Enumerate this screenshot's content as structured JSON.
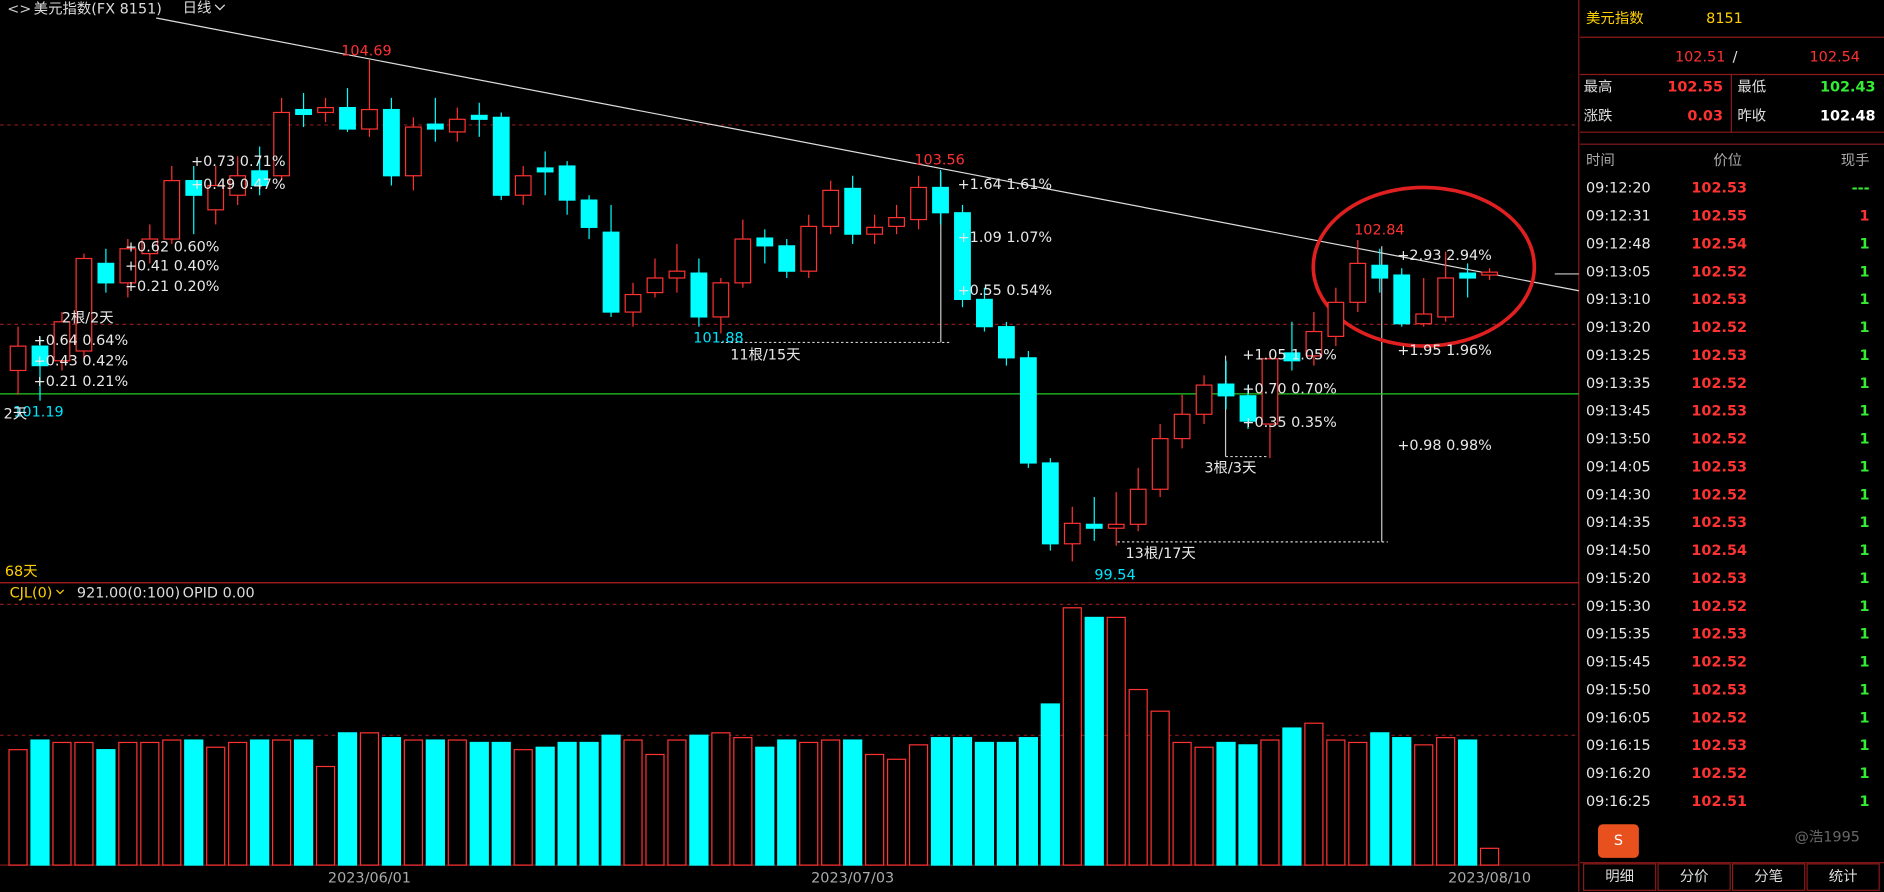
{
  "header": {
    "title": "美元指数(FX 8151)",
    "period": "日线"
  },
  "chart_data": {
    "type": "candlestick",
    "categories": [
      null,
      null,
      null,
      null,
      null,
      null,
      null,
      null,
      null,
      null,
      null,
      null,
      null,
      null,
      null,
      null,
      "2023/06/01",
      null,
      null,
      null,
      null,
      null,
      null,
      null,
      null,
      null,
      null,
      null,
      null,
      null,
      null,
      null,
      null,
      null,
      null,
      null,
      null,
      null,
      "2023/07/03",
      null,
      null,
      null,
      null,
      null,
      null,
      null,
      null,
      null,
      null,
      null,
      null,
      null,
      null,
      null,
      null,
      null,
      null,
      null,
      null,
      null,
      null,
      null,
      null,
      null,
      null,
      null,
      null,
      "2023/08/10"
    ],
    "open": [
      101.5,
      101.75,
      101.6,
      101.7,
      102.6,
      102.4,
      102.7,
      102.85,
      103.45,
      103.15,
      103.3,
      103.55,
      103.5,
      104.18,
      104.15,
      104.2,
      103.98,
      104.18,
      103.5,
      104.03,
      103.95,
      104.12,
      104.1,
      103.3,
      103.58,
      103.6,
      103.25,
      102.92,
      102.1,
      102.3,
      102.45,
      102.5,
      102.05,
      102.4,
      102.86,
      102.78,
      102.52,
      102.98,
      103.37,
      102.9,
      102.98,
      103.05,
      103.38,
      103.12,
      102.23,
      101.95,
      101.63,
      100.55,
      99.72,
      99.92,
      99.88,
      99.92,
      100.28,
      100.8,
      101.05,
      101.36,
      101.24,
      100.95,
      101.68,
      101.65,
      101.85,
      102.2,
      102.58,
      102.48,
      101.98,
      102.05,
      102.5,
      102.48
    ],
    "close": [
      101.75,
      101.55,
      102.0,
      102.65,
      102.4,
      102.75,
      102.85,
      103.45,
      103.3,
      103.4,
      103.5,
      103.4,
      104.15,
      104.13,
      104.2,
      103.98,
      104.18,
      103.5,
      104.0,
      103.98,
      104.08,
      104.08,
      103.3,
      103.5,
      103.54,
      103.25,
      102.97,
      102.1,
      102.28,
      102.45,
      102.52,
      102.05,
      102.4,
      102.85,
      102.78,
      102.52,
      102.98,
      103.35,
      102.9,
      102.97,
      103.07,
      103.38,
      103.12,
      102.23,
      101.95,
      101.63,
      100.55,
      99.72,
      99.93,
      99.88,
      99.92,
      100.28,
      100.8,
      101.05,
      101.35,
      101.24,
      100.98,
      101.62,
      101.6,
      101.9,
      102.2,
      102.6,
      102.45,
      101.98,
      102.08,
      102.45,
      102.45,
      102.51
    ],
    "high": [
      101.95,
      101.85,
      102.1,
      102.7,
      102.75,
      102.85,
      103.0,
      103.6,
      103.6,
      103.6,
      103.7,
      103.8,
      104.3,
      104.35,
      104.3,
      104.4,
      104.69,
      104.3,
      104.1,
      104.3,
      104.2,
      104.25,
      104.15,
      103.6,
      103.75,
      103.65,
      103.3,
      103.2,
      102.4,
      102.65,
      102.8,
      102.65,
      102.45,
      103.05,
      102.95,
      102.85,
      103.1,
      103.45,
      103.5,
      103.1,
      103.2,
      103.5,
      103.56,
      103.2,
      102.35,
      102.0,
      101.7,
      100.6,
      100.1,
      100.2,
      100.25,
      100.5,
      100.95,
      101.25,
      101.45,
      101.6,
      101.35,
      101.7,
      102.0,
      102.1,
      102.35,
      102.84,
      102.75,
      102.55,
      102.45,
      102.72,
      102.6,
      102.55
    ],
    "low": [
      101.25,
      101.19,
      101.5,
      101.6,
      102.3,
      102.25,
      102.6,
      102.8,
      102.9,
      103.0,
      103.2,
      103.3,
      103.45,
      104.0,
      104.05,
      103.95,
      103.9,
      103.4,
      103.35,
      103.85,
      103.85,
      103.9,
      103.25,
      103.2,
      103.3,
      103.1,
      102.85,
      102.05,
      101.95,
      102.25,
      102.3,
      101.95,
      101.88,
      102.35,
      102.6,
      102.45,
      102.45,
      102.9,
      102.8,
      102.8,
      102.9,
      102.95,
      103.0,
      102.15,
      101.9,
      101.55,
      100.5,
      99.65,
      99.54,
      99.75,
      99.7,
      99.85,
      100.2,
      100.7,
      100.95,
      101.1,
      100.9,
      100.6,
      101.5,
      101.55,
      101.75,
      102.1,
      102.3,
      101.95,
      101.95,
      102.0,
      102.25,
      102.43
    ],
    "ylim": [
      99.32,
      105.12
    ],
    "colors": {
      "up": "#ff3232",
      "down": "#00ffff"
    },
    "reference_line": 101.26,
    "count_label": "68天",
    "price_labels": [
      104.69,
      103.56,
      102.84,
      101.19,
      101.88,
      99.54
    ],
    "annotations": [
      "11根/15天",
      "13根/17天",
      "3根/3天",
      "2根/2天",
      "2天",
      "+1.64  1.61%",
      "+1.09  1.07%",
      "+0.55  0.54%",
      "+2.93  2.94%",
      "+1.95  1.96%",
      "+0.98  0.98%",
      "+1.05  1.05%",
      "+0.70  0.70%",
      "+0.35  0.35%",
      "+0.64  0.64%",
      "+0.43  0.42%",
      "+0.21  0.21%",
      "+0.62  0.60%",
      "+0.41  0.40%",
      "+0.21  0.20%",
      "+0.73  0.71%",
      "+0.49  0.47%"
    ],
    "volume": {
      "indicator": "CJL(0)",
      "params": "921.00(0:100)",
      "opid": "OPID 0.00",
      "ylim": [
        0,
        15500
      ],
      "values": [
        6336,
        6864,
        6732,
        6732,
        6336,
        6732,
        6732,
        6864,
        6864,
        6468,
        6732,
        6864,
        6864,
        6864,
        5412,
        7260,
        7260,
        6996,
        6864,
        6864,
        6864,
        6732,
        6732,
        6336,
        6468,
        6732,
        6732,
        7128,
        6864,
        6072,
        6864,
        7128,
        7260,
        6996,
        6468,
        6864,
        6732,
        6864,
        6864,
        6072,
        5808,
        6600,
        6996,
        6996,
        6732,
        6732,
        6996,
        8844,
        14124,
        13596,
        13596,
        9636,
        8448,
        6732,
        6468,
        6732,
        6600,
        6864,
        7524,
        7788,
        6864,
        6732,
        7260,
        6996,
        6600,
        6996,
        6864,
        921
      ]
    }
  },
  "quote": {
    "name": "美元指数",
    "code": "8151",
    "bid": "102.51",
    "separator": "/",
    "ask": "102.54",
    "stats": [
      {
        "label": "最高",
        "value": "102.55",
        "color": "#ff3232"
      },
      {
        "label": "最低",
        "value": "102.43",
        "color": "#33ee33"
      },
      {
        "label": "涨跌",
        "value": "0.03",
        "color": "#ff3232"
      },
      {
        "label": "昨收",
        "value": "102.48",
        "color": "#ffffff"
      }
    ],
    "columns": [
      "时间",
      "价位",
      "现手"
    ],
    "ticks": [
      {
        "time": "09:12:20",
        "price": "102.53",
        "size": "---",
        "color": "#33ee33"
      },
      {
        "time": "09:12:31",
        "price": "102.55",
        "size": "1",
        "color": "#ff3232"
      },
      {
        "time": "09:12:48",
        "price": "102.54",
        "size": "1",
        "color": "#33ee33"
      },
      {
        "time": "09:13:05",
        "price": "102.52",
        "size": "1",
        "color": "#33ee33"
      },
      {
        "time": "09:13:10",
        "price": "102.53",
        "size": "1",
        "color": "#33ee33"
      },
      {
        "time": "09:13:20",
        "price": "102.52",
        "size": "1",
        "color": "#33ee33"
      },
      {
        "time": "09:13:25",
        "price": "102.53",
        "size": "1",
        "color": "#33ee33"
      },
      {
        "time": "09:13:35",
        "price": "102.52",
        "size": "1",
        "color": "#33ee33"
      },
      {
        "time": "09:13:45",
        "price": "102.53",
        "size": "1",
        "color": "#33ee33"
      },
      {
        "time": "09:13:50",
        "price": "102.52",
        "size": "1",
        "color": "#33ee33"
      },
      {
        "time": "09:14:05",
        "price": "102.53",
        "size": "1",
        "color": "#33ee33"
      },
      {
        "time": "09:14:30",
        "price": "102.52",
        "size": "1",
        "color": "#33ee33"
      },
      {
        "time": "09:14:35",
        "price": "102.53",
        "size": "1",
        "color": "#33ee33"
      },
      {
        "time": "09:14:50",
        "price": "102.54",
        "size": "1",
        "color": "#33ee33"
      },
      {
        "time": "09:15:20",
        "price": "102.53",
        "size": "1",
        "color": "#33ee33"
      },
      {
        "time": "09:15:30",
        "price": "102.52",
        "size": "1",
        "color": "#33ee33"
      },
      {
        "time": "09:15:35",
        "price": "102.53",
        "size": "1",
        "color": "#33ee33"
      },
      {
        "time": "09:15:45",
        "price": "102.52",
        "size": "1",
        "color": "#33ee33"
      },
      {
        "time": "09:15:50",
        "price": "102.53",
        "size": "1",
        "color": "#33ee33"
      },
      {
        "time": "09:16:05",
        "price": "102.52",
        "size": "1",
        "color": "#33ee33"
      },
      {
        "time": "09:16:15",
        "price": "102.53",
        "size": "1",
        "color": "#33ee33"
      },
      {
        "time": "09:16:20",
        "price": "102.52",
        "size": "1",
        "color": "#33ee33"
      },
      {
        "time": "09:16:25",
        "price": "102.51",
        "size": "1",
        "color": "#33ee33"
      }
    ],
    "tabs": [
      "明细",
      "分价",
      "分笔",
      "统计"
    ],
    "watermark": "@浩1995"
  }
}
